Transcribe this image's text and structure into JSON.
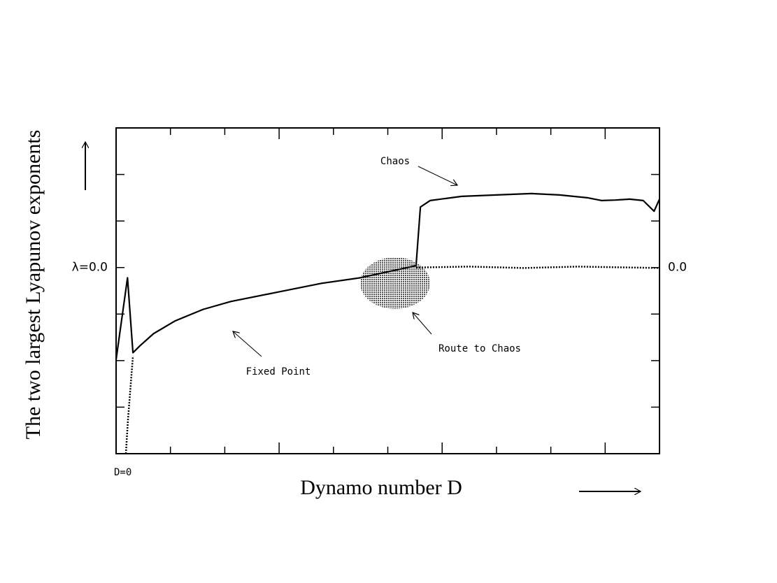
{
  "chart_data": {
    "type": "line",
    "xlabel": "Dynamo number D",
    "ylabel": "The two largest Lyapunov exponents",
    "xlim": [
      0,
      10
    ],
    "ylim": [
      -4,
      3
    ],
    "xticks": [
      {
        "value": 0,
        "label": "D=0"
      }
    ],
    "xtick_marks": [
      1,
      2,
      3,
      4,
      5,
      6,
      7,
      8,
      9
    ],
    "yticks": [
      {
        "value": 0,
        "label": "λ=0.0"
      }
    ],
    "ytick_marks": [
      -3,
      -2,
      -1,
      1,
      2
    ],
    "y2lim": [
      -4,
      3
    ],
    "y2ticks": [
      {
        "value": 0,
        "label": "0.0"
      }
    ],
    "annotations": [
      "Chaos",
      "Fixed Point",
      "Route to Chaos"
    ],
    "series": [
      {
        "color": "#000000",
        "style": "solid",
        "x": [
          0,
          0.21,
          0.31,
          0.44,
          0.69,
          1.08,
          1.6,
          2.11,
          3.01,
          3.78,
          4.49,
          5.52,
          5.6,
          5.78,
          6.36,
          7.0,
          7.64,
          8.16,
          8.67,
          8.93,
          9.19,
          9.45,
          9.7,
          9.9,
          10
        ],
        "values": [
          -1.98,
          -0.22,
          -1.83,
          -1.68,
          -1.42,
          -1.15,
          -0.9,
          -0.73,
          -0.52,
          -0.34,
          -0.22,
          0.04,
          1.3,
          1.44,
          1.53,
          1.56,
          1.59,
          1.56,
          1.5,
          1.44,
          1.45,
          1.47,
          1.44,
          1.21,
          1.47
        ]
      },
      {
        "color": "#000000",
        "style": "dotted",
        "x": [
          0.18,
          0.22,
          0.31,
          null,
          5.52,
          6.5,
          7.5,
          8.5,
          9.5,
          10
        ],
        "values": [
          -4,
          -3.25,
          -1.9,
          null,
          0,
          0.02,
          -0.01,
          0.02,
          0,
          -0.01
        ]
      }
    ]
  }
}
